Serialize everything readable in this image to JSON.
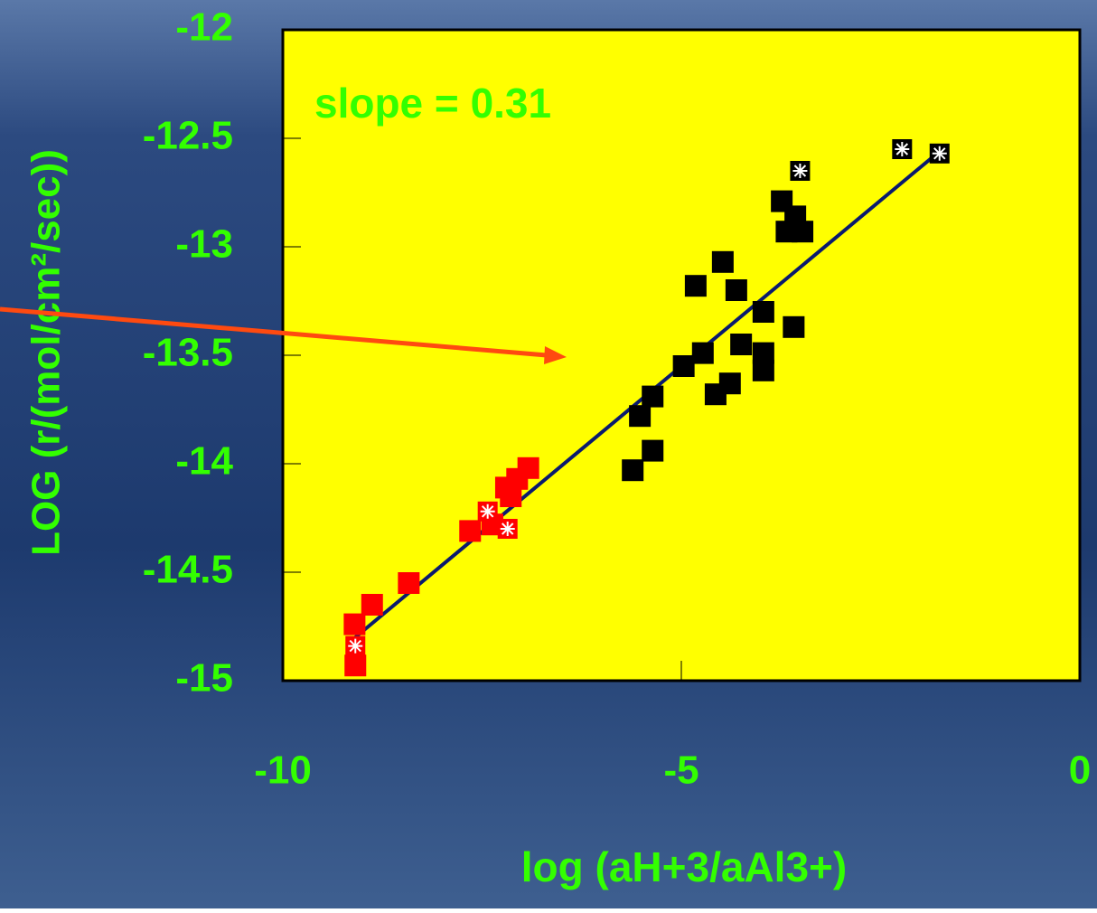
{
  "chart_data": {
    "type": "scatter",
    "x_label": "log (aH+3/aAl3+)",
    "y_label": "LOG (r/(mol/cm²/sec))",
    "annotation": "slope = 0.31",
    "xlim": [
      -10,
      0
    ],
    "xticks": [
      -10,
      -5,
      0
    ],
    "ylim": [
      -15,
      -12
    ],
    "yticks": [
      -12,
      -12.5,
      -13,
      -13.5,
      -14,
      -14.5,
      -15
    ],
    "plot_color": "#ffff00",
    "text_color": "#33ff00",
    "series": [
      {
        "color": "#ff0000",
        "marker": "square",
        "x": [
          -9.1,
          -9.09,
          -8.88,
          -8.42,
          -7.65,
          -7.37,
          -7.2,
          -7.06,
          -6.92,
          -7.14
        ],
        "values": [
          -14.74,
          -14.93,
          -14.65,
          -14.55,
          -14.31,
          -14.28,
          -14.11,
          -14.07,
          -14.02,
          -14.15
        ]
      },
      {
        "color": "#000000",
        "marker": "square",
        "x": [
          -5.61,
          -5.36,
          -5.52,
          -5.36,
          -4.97,
          -4.73,
          -4.57,
          -4.39,
          -4.25,
          -3.97,
          -3.97,
          -4.82,
          -4.48,
          -4.31,
          -3.97,
          -3.59,
          -3.74,
          -3.68,
          -3.48,
          -3.57
        ],
        "values": [
          -14.03,
          -13.94,
          -13.78,
          -13.69,
          -13.55,
          -13.49,
          -13.68,
          -13.63,
          -13.45,
          -13.57,
          -13.49,
          -13.18,
          -13.07,
          -13.2,
          -13.3,
          -13.37,
          -12.79,
          -12.93,
          -12.93,
          -12.86
        ]
      },
      {
        "color": "#ffffff",
        "marker": "asterisk",
        "box": "#ff0000",
        "x": [
          -9.09,
          -7.43,
          -7.18
        ],
        "values": [
          -14.84,
          -14.22,
          -14.3
        ]
      },
      {
        "color": "#ffffff",
        "marker": "asterisk",
        "box": "#000000",
        "x": [
          -3.51,
          -2.23,
          -1.76
        ],
        "values": [
          -12.65,
          -12.55,
          -12.57
        ]
      }
    ],
    "fit_line": {
      "color": "#0a1a6e",
      "x": [
        -9.09,
        -1.76
      ],
      "values": [
        -14.8,
        -12.56
      ]
    }
  }
}
